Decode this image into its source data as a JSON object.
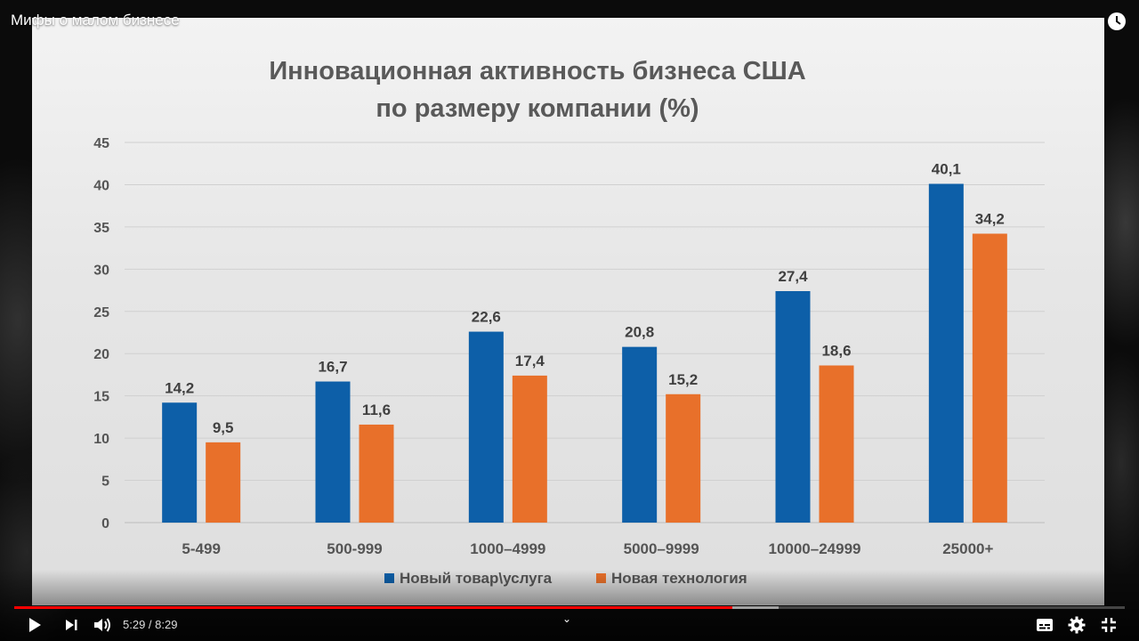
{
  "player": {
    "video_title": "Мифы о малом бизнесе",
    "time_display": "5:29 / 8:29",
    "progress_played_fraction": 0.647,
    "progress_buffered_fraction": 0.688,
    "accent_color": "#ff0000"
  },
  "icons": [
    "clock-icon",
    "play-icon",
    "next-icon",
    "volume-icon",
    "chevron-up-icon",
    "subtitles-icon",
    "settings-icon",
    "exit-fullscreen-icon"
  ],
  "chart_data": {
    "type": "bar",
    "title": [
      "Инновационная активность бизнеса США",
      "по размеру компании (%)"
    ],
    "categories": [
      "5-499",
      "500-999",
      "1000–4999",
      "5000–9999",
      "10000–24999",
      "25000+"
    ],
    "series": [
      {
        "name": "Новый товар\\услуга",
        "values": [
          14.2,
          16.7,
          22.6,
          20.8,
          27.4,
          40.1
        ],
        "labels": [
          "14,2",
          "16,7",
          "22,6",
          "20,8",
          "27,4",
          "40,1"
        ],
        "color": "#0d5fa8"
      },
      {
        "name": "Новая технология",
        "values": [
          9.5,
          11.6,
          17.4,
          15.2,
          18.6,
          34.2
        ],
        "labels": [
          "9,5",
          "11,6",
          "17,4",
          "15,2",
          "18,6",
          "34,2"
        ],
        "color": "#e8702a"
      }
    ],
    "yticks": [
      0,
      5,
      10,
      15,
      20,
      25,
      30,
      35,
      40,
      45
    ],
    "ylim": [
      0,
      45
    ],
    "grid": true,
    "legend": "bottom"
  }
}
